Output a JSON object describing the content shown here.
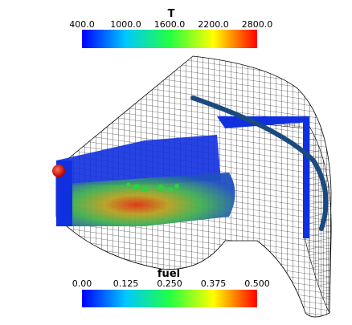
{
  "colorbars": [
    {
      "title": "T",
      "ticks": [
        "400.0",
        "1000.0",
        "1600.0",
        "2200.0",
        "2800.0"
      ]
    },
    {
      "title": "fuel",
      "ticks": [
        "0.00",
        "0.125",
        "0.250",
        "0.375",
        "0.500"
      ]
    }
  ]
}
